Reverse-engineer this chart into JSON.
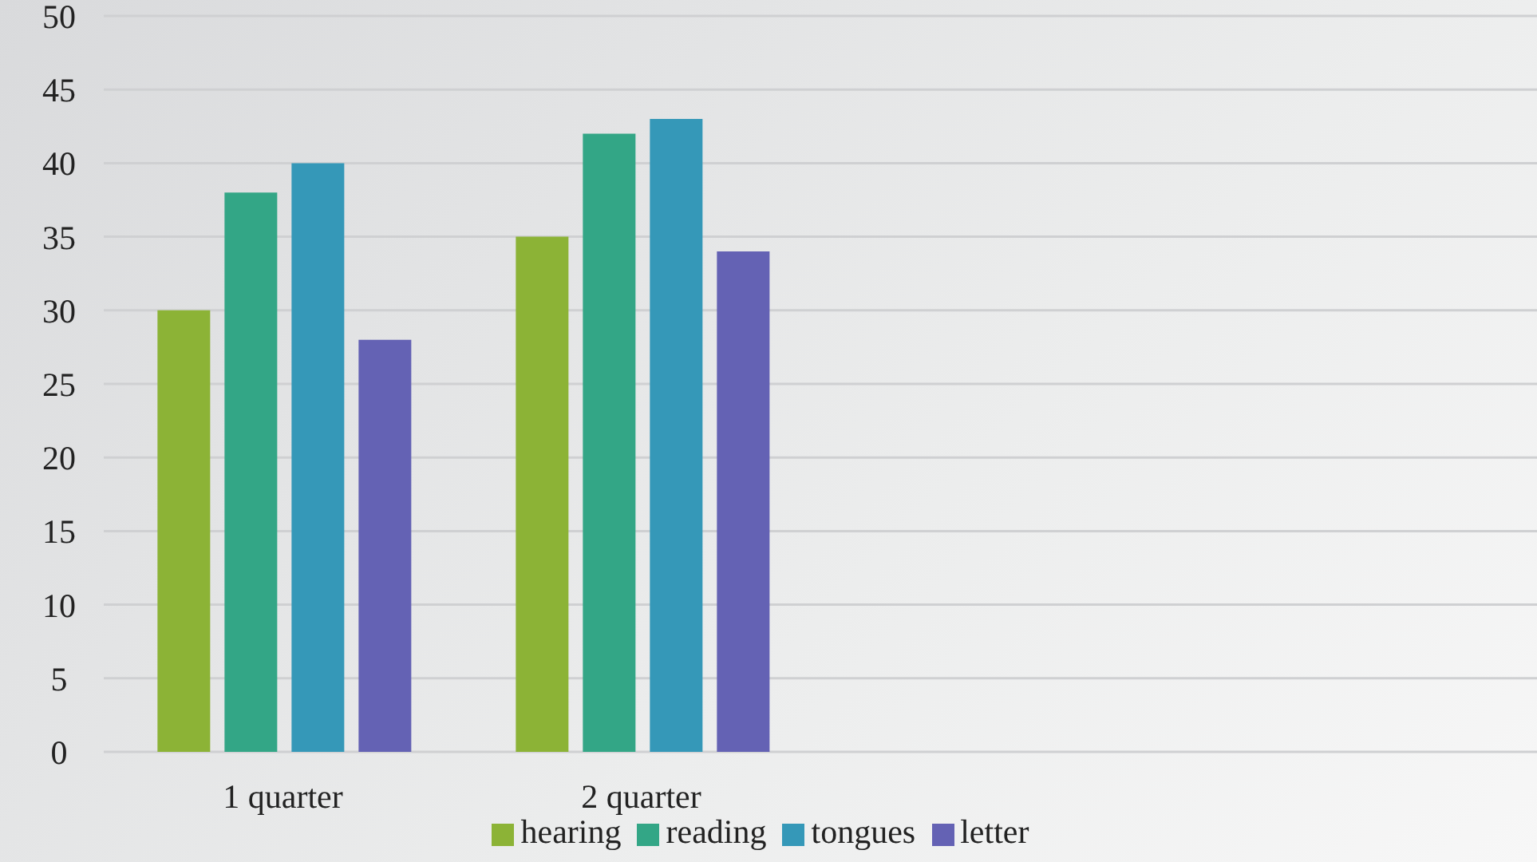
{
  "chart_data": {
    "type": "bar",
    "categories": [
      "1 quarter",
      "2 quarter",
      null,
      null
    ],
    "series": [
      {
        "name": "hearing",
        "color": "#8cb336",
        "values": [
          30,
          35,
          null,
          null
        ]
      },
      {
        "name": "reading",
        "color": "#33a686",
        "values": [
          38,
          42,
          null,
          null
        ]
      },
      {
        "name": "tongues",
        "color": "#3598b8",
        "values": [
          40,
          43,
          null,
          null
        ]
      },
      {
        "name": "letter",
        "color": "#6462b4",
        "values": [
          28,
          34,
          null,
          null
        ]
      }
    ],
    "ylim": [
      0,
      50
    ],
    "yticks": [
      0,
      5,
      10,
      15,
      20,
      25,
      30,
      35,
      40,
      45,
      50
    ],
    "grid": "y",
    "legend": "bottom"
  }
}
